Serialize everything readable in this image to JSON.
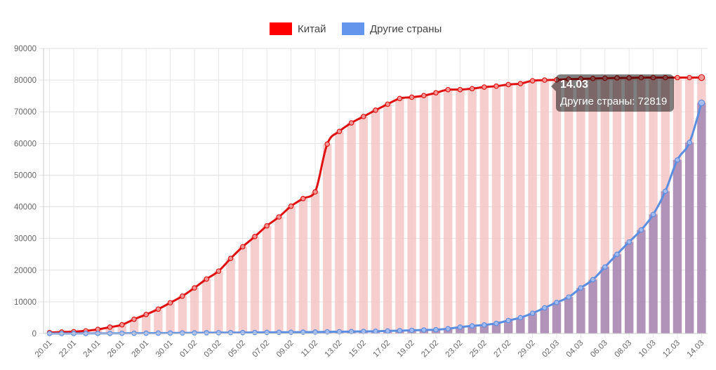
{
  "chart_data": {
    "type": "bar",
    "categories": [
      "20.01",
      "21.01",
      "22.01",
      "23.01",
      "24.01",
      "25.01",
      "26.01",
      "27.01",
      "28.01",
      "29.01",
      "30.01",
      "31.01",
      "01.02",
      "02.02",
      "03.02",
      "04.02",
      "05.02",
      "06.02",
      "07.02",
      "08.02",
      "09.02",
      "10.02",
      "11.02",
      "12.02",
      "13.02",
      "14.02",
      "15.02",
      "16.02",
      "17.02",
      "18.02",
      "19.02",
      "20.02",
      "21.02",
      "22.02",
      "23.02",
      "24.02",
      "25.02",
      "26.02",
      "27.02",
      "28.02",
      "29.02",
      "01.03",
      "02.03",
      "03.03",
      "04.03",
      "05.03",
      "06.03",
      "07.03",
      "08.03",
      "09.03",
      "10.03",
      "11.03",
      "12.03",
      "13.03",
      "14.03"
    ],
    "x_tick_labels": [
      "20.01",
      "22.01",
      "24.01",
      "26.01",
      "28.01",
      "30.01",
      "01.02",
      "03.02",
      "05.02",
      "07.02",
      "09.02",
      "11.02",
      "13.02",
      "15.02",
      "17.02",
      "19.02",
      "21.02",
      "23.02",
      "25.02",
      "27.02",
      "29.02",
      "02.03",
      "04.03",
      "06.03",
      "08.03",
      "10.03",
      "12.03",
      "14.03"
    ],
    "y_ticks": [
      0,
      10000,
      20000,
      30000,
      40000,
      50000,
      60000,
      70000,
      80000,
      90000
    ],
    "ylim": [
      0,
      90000
    ],
    "grid": true,
    "legend_position": "top",
    "series": [
      {
        "name": "Китай",
        "color": "#ff0000",
        "line_color": "#e01010",
        "bar_color": "#f5c6c6",
        "values": [
          300,
          450,
          580,
          830,
          1300,
          2000,
          2750,
          4500,
          6000,
          7700,
          9700,
          11800,
          14400,
          17200,
          19700,
          23700,
          27400,
          30600,
          34000,
          36800,
          40200,
          42600,
          44700,
          59800,
          63800,
          66500,
          68500,
          70500,
          72400,
          74200,
          74600,
          75100,
          76000,
          77000,
          77000,
          77300,
          77800,
          78100,
          78600,
          78900,
          79800,
          80000,
          80100,
          80300,
          80400,
          80500,
          80600,
          80700,
          80700,
          80800,
          80800,
          80800,
          80800,
          80800,
          80800
        ]
      },
      {
        "name": "Другие страны",
        "color": "#6495ed",
        "line_color": "#5b8de0",
        "bar_color": "#9a7fb2",
        "values": [
          0,
          0,
          10,
          20,
          30,
          40,
          60,
          80,
          100,
          120,
          150,
          180,
          200,
          230,
          250,
          280,
          300,
          320,
          350,
          380,
          400,
          430,
          450,
          520,
          550,
          600,
          650,
          700,
          800,
          900,
          1000,
          1100,
          1200,
          1500,
          2000,
          2400,
          2700,
          3200,
          4100,
          5000,
          6400,
          8100,
          9800,
          11500,
          14400,
          17000,
          21000,
          25000,
          28900,
          32700,
          37600,
          44900,
          54800,
          60300,
          72819
        ]
      }
    ],
    "tooltip": {
      "title": "14.03",
      "body": "Другие страны: 72819"
    }
  }
}
